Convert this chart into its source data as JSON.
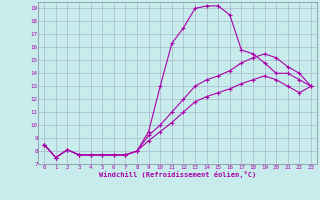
{
  "xlabel": "Windchill (Refroidissement éolien,°C)",
  "bg_color": "#c8ecec",
  "grid_color": "#a8b8cc",
  "line_color": "#aa00aa",
  "xlim": [
    -0.5,
    23.5
  ],
  "ylim": [
    7,
    19.5
  ],
  "xticks": [
    0,
    1,
    2,
    3,
    4,
    5,
    6,
    7,
    8,
    9,
    10,
    11,
    12,
    13,
    14,
    15,
    16,
    17,
    18,
    19,
    20,
    21,
    22,
    23
  ],
  "yticks": [
    7,
    8,
    9,
    10,
    11,
    12,
    13,
    14,
    15,
    16,
    17,
    18,
    19
  ],
  "curve1_x": [
    0,
    1,
    2,
    3,
    4,
    5,
    6,
    7,
    8,
    9,
    10,
    11,
    12,
    13,
    14,
    15,
    16,
    17,
    18,
    19,
    20,
    21,
    22,
    23
  ],
  "curve1_y": [
    8.5,
    7.5,
    8.1,
    7.7,
    7.7,
    7.7,
    7.7,
    7.7,
    8.0,
    9.5,
    13.0,
    16.3,
    17.5,
    19.0,
    19.2,
    19.2,
    18.5,
    15.8,
    15.5,
    14.8,
    14.0,
    14.0,
    13.5,
    13.0
  ],
  "curve2_x": [
    0,
    1,
    2,
    3,
    4,
    5,
    6,
    7,
    8,
    9,
    10,
    11,
    12,
    13,
    14,
    15,
    16,
    17,
    18,
    19,
    20,
    21,
    22,
    23
  ],
  "curve2_y": [
    8.5,
    7.5,
    8.1,
    7.7,
    7.7,
    7.7,
    7.7,
    7.7,
    8.0,
    9.2,
    10.0,
    11.0,
    12.0,
    13.0,
    13.5,
    13.8,
    14.2,
    14.8,
    15.2,
    15.5,
    15.2,
    14.5,
    14.0,
    13.0
  ],
  "curve3_x": [
    0,
    1,
    2,
    3,
    4,
    5,
    6,
    7,
    8,
    9,
    10,
    11,
    12,
    13,
    14,
    15,
    16,
    17,
    18,
    19,
    20,
    21,
    22,
    23
  ],
  "curve3_y": [
    8.5,
    7.5,
    8.1,
    7.7,
    7.7,
    7.7,
    7.7,
    7.7,
    8.0,
    8.8,
    9.5,
    10.2,
    11.0,
    11.8,
    12.2,
    12.5,
    12.8,
    13.2,
    13.5,
    13.8,
    13.5,
    13.0,
    12.5,
    13.0
  ]
}
